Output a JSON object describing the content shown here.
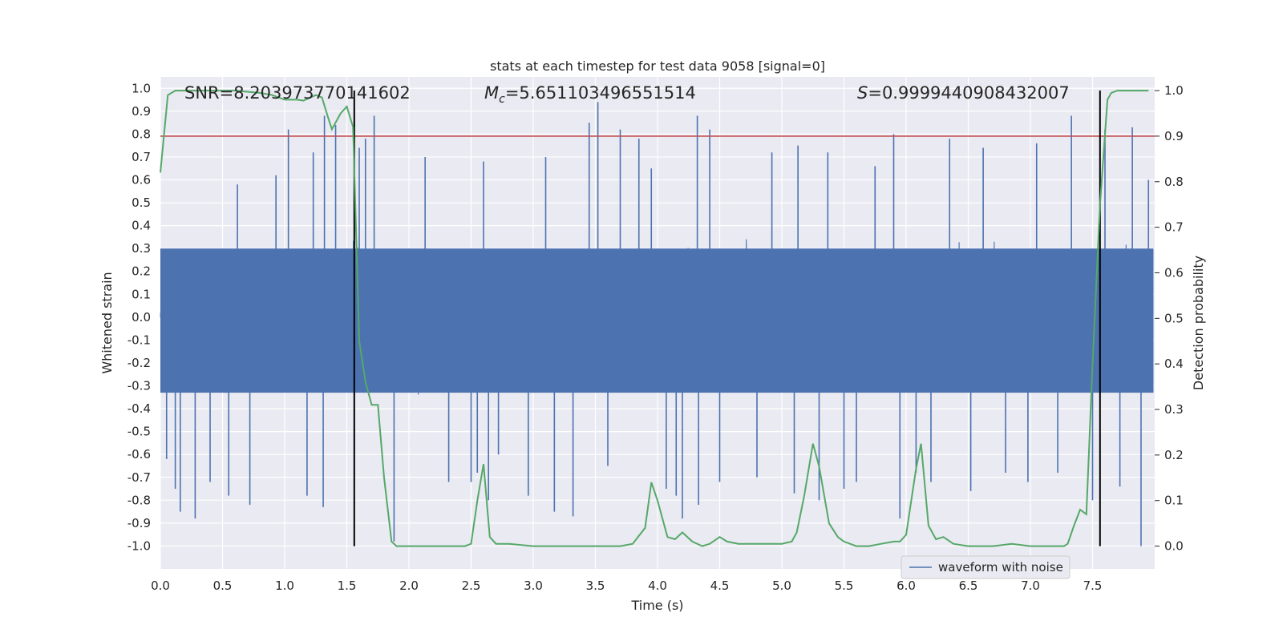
{
  "chart_data": {
    "type": "line",
    "title": "stats at each timestep for test data 9058 [signal=0]",
    "xlabel": "Time (s)",
    "ylabel_left": "Whitened strain",
    "ylabel_right": "Detection probability",
    "xlim": [
      0.0,
      8.0
    ],
    "ylim_left": [
      -1.1,
      1.05
    ],
    "ylim_right": [
      -0.05,
      1.03
    ],
    "x_ticks": [
      0.0,
      0.5,
      1.0,
      1.5,
      2.0,
      2.5,
      3.0,
      3.5,
      4.0,
      4.5,
      5.0,
      5.5,
      6.0,
      6.5,
      7.0,
      7.5
    ],
    "x_tick_labels": [
      "0.0",
      "0.5",
      "1.0",
      "1.5",
      "2.0",
      "2.5",
      "3.0",
      "3.5",
      "4.0",
      "4.5",
      "5.0",
      "5.5",
      "6.0",
      "6.5",
      "7.0",
      "7.5"
    ],
    "y_left_ticks": [
      1.0,
      0.9,
      0.8,
      0.7,
      0.6,
      0.5,
      0.4,
      0.3,
      0.2,
      0.1,
      0.0,
      -0.1,
      -0.2,
      -0.3,
      -0.4,
      -0.5,
      -0.6,
      -0.7,
      -0.8,
      -0.9,
      -1.0
    ],
    "y_left_tick_labels": [
      "1.0",
      "0.9",
      "0.8",
      "0.7",
      "0.6",
      "0.5",
      "0.4",
      "0.3",
      "0.2",
      "0.1",
      "0.0",
      "-0.1",
      "-0.2",
      "-0.3",
      "-0.4",
      "-0.5",
      "-0.6",
      "-0.7",
      "-0.8",
      "-0.9",
      "-1.0"
    ],
    "y_right_ticks": [
      1.0,
      0.9,
      0.8,
      0.7,
      0.6,
      0.5,
      0.4,
      0.3,
      0.2,
      0.1,
      0.0
    ],
    "y_right_tick_labels": [
      "1.0",
      "0.9",
      "0.8",
      "0.7",
      "0.6",
      "0.5",
      "0.4",
      "0.3",
      "0.2",
      "0.1",
      "0.0"
    ],
    "threshold": 0.9,
    "threshold_color": "#c44e52",
    "vertical_markers": [
      1.56,
      7.56
    ],
    "annotations": {
      "snr": "SNR=8.203973770141602",
      "mc_symbol": "M",
      "mc_sub": "c",
      "mc_value": "=5.651103496551514",
      "s_symbol": "S",
      "s_value": "=0.9999440908432007"
    },
    "legend": {
      "label": "waveform with noise",
      "position": "lower right"
    },
    "series": [
      {
        "name": "waveform with noise",
        "axis": "left",
        "color": "#4c72b0",
        "style": "dense noise, envelope approx ±0.4, spikes to ±0.95",
        "core_amplitude": 0.42,
        "spikes": [
          [
            0.05,
            -0.62
          ],
          [
            0.12,
            -0.75
          ],
          [
            0.16,
            -0.85
          ],
          [
            0.28,
            -0.88
          ],
          [
            0.4,
            -0.72
          ],
          [
            0.55,
            -0.78
          ],
          [
            0.62,
            0.58
          ],
          [
            0.72,
            -0.82
          ],
          [
            0.93,
            0.62
          ],
          [
            1.03,
            0.82
          ],
          [
            1.18,
            -0.78
          ],
          [
            1.23,
            0.72
          ],
          [
            1.31,
            -0.83
          ],
          [
            1.32,
            0.88
          ],
          [
            1.41,
            0.84
          ],
          [
            1.56,
            -0.72
          ],
          [
            1.6,
            0.74
          ],
          [
            1.65,
            0.78
          ],
          [
            1.72,
            0.88
          ],
          [
            1.88,
            -0.98
          ],
          [
            2.13,
            0.7
          ],
          [
            2.32,
            -0.72
          ],
          [
            2.5,
            -0.72
          ],
          [
            2.55,
            -0.68
          ],
          [
            2.6,
            0.68
          ],
          [
            2.64,
            -0.8
          ],
          [
            2.72,
            -0.6
          ],
          [
            2.96,
            -0.78
          ],
          [
            3.1,
            0.7
          ],
          [
            3.17,
            -0.85
          ],
          [
            3.32,
            -0.87
          ],
          [
            3.45,
            0.85
          ],
          [
            3.52,
            0.94
          ],
          [
            3.6,
            -0.65
          ],
          [
            3.7,
            0.82
          ],
          [
            3.85,
            0.78
          ],
          [
            3.95,
            0.65
          ],
          [
            4.07,
            -0.75
          ],
          [
            4.15,
            -0.78
          ],
          [
            4.2,
            -0.88
          ],
          [
            4.32,
            0.88
          ],
          [
            4.33,
            -0.82
          ],
          [
            4.42,
            0.82
          ],
          [
            4.5,
            -0.72
          ],
          [
            4.8,
            -0.7
          ],
          [
            4.92,
            0.72
          ],
          [
            5.1,
            -0.77
          ],
          [
            5.13,
            0.75
          ],
          [
            5.3,
            -0.8
          ],
          [
            5.37,
            0.72
          ],
          [
            5.5,
            -0.75
          ],
          [
            5.6,
            -0.72
          ],
          [
            5.75,
            0.66
          ],
          [
            5.9,
            0.8
          ],
          [
            5.95,
            -0.88
          ],
          [
            6.08,
            -0.68
          ],
          [
            6.2,
            -0.72
          ],
          [
            6.35,
            0.78
          ],
          [
            6.52,
            -0.76
          ],
          [
            6.62,
            0.74
          ],
          [
            6.8,
            -0.68
          ],
          [
            6.98,
            -0.72
          ],
          [
            7.05,
            0.76
          ],
          [
            7.22,
            -0.68
          ],
          [
            7.33,
            0.88
          ],
          [
            7.5,
            -0.8
          ],
          [
            7.6,
            0.82
          ],
          [
            7.72,
            -0.74
          ],
          [
            7.82,
            0.83
          ],
          [
            7.89,
            -1.0
          ],
          [
            7.95,
            0.6
          ]
        ]
      },
      {
        "name": "detection probability",
        "axis": "right",
        "color": "#55a868",
        "x": [
          0.0,
          0.06,
          0.12,
          0.2,
          0.4,
          0.6,
          0.8,
          0.9,
          1.0,
          1.1,
          1.15,
          1.25,
          1.3,
          1.35,
          1.38,
          1.45,
          1.5,
          1.55,
          1.6,
          1.65,
          1.7,
          1.75,
          1.8,
          1.86,
          1.9,
          2.0,
          2.2,
          2.4,
          2.45,
          2.5,
          2.55,
          2.6,
          2.65,
          2.7,
          2.8,
          3.0,
          3.2,
          3.4,
          3.6,
          3.7,
          3.8,
          3.9,
          3.95,
          4.0,
          4.08,
          4.14,
          4.2,
          4.28,
          4.36,
          4.42,
          4.5,
          4.56,
          4.65,
          4.8,
          5.0,
          5.08,
          5.12,
          5.18,
          5.25,
          5.3,
          5.38,
          5.45,
          5.5,
          5.6,
          5.7,
          5.8,
          5.9,
          5.95,
          6.0,
          6.08,
          6.12,
          6.18,
          6.24,
          6.3,
          6.38,
          6.5,
          6.7,
          6.85,
          7.0,
          7.2,
          7.27,
          7.3,
          7.35,
          7.4,
          7.45,
          7.5,
          7.56,
          7.62,
          7.65,
          7.7,
          7.8,
          7.95
        ],
        "y": [
          0.82,
          0.99,
          1.0,
          1.0,
          1.0,
          1.0,
          0.995,
          0.99,
          0.98,
          0.98,
          0.978,
          0.99,
          0.985,
          0.94,
          0.915,
          0.95,
          0.965,
          0.92,
          0.45,
          0.36,
          0.31,
          0.31,
          0.15,
          0.01,
          0.0,
          0.0,
          0.0,
          0.0,
          0.0,
          0.005,
          0.1,
          0.18,
          0.02,
          0.005,
          0.005,
          0.0,
          0.0,
          0.0,
          0.0,
          0.0,
          0.005,
          0.04,
          0.14,
          0.1,
          0.02,
          0.015,
          0.03,
          0.01,
          0.0,
          0.005,
          0.02,
          0.01,
          0.005,
          0.005,
          0.005,
          0.01,
          0.03,
          0.11,
          0.225,
          0.175,
          0.05,
          0.02,
          0.01,
          0.0,
          0.0,
          0.005,
          0.01,
          0.01,
          0.025,
          0.17,
          0.225,
          0.045,
          0.015,
          0.02,
          0.005,
          0.0,
          0.0,
          0.005,
          0.0,
          0.0,
          0.0,
          0.005,
          0.045,
          0.08,
          0.07,
          0.4,
          0.75,
          0.98,
          0.995,
          1.0,
          1.0,
          1.0
        ]
      }
    ]
  }
}
